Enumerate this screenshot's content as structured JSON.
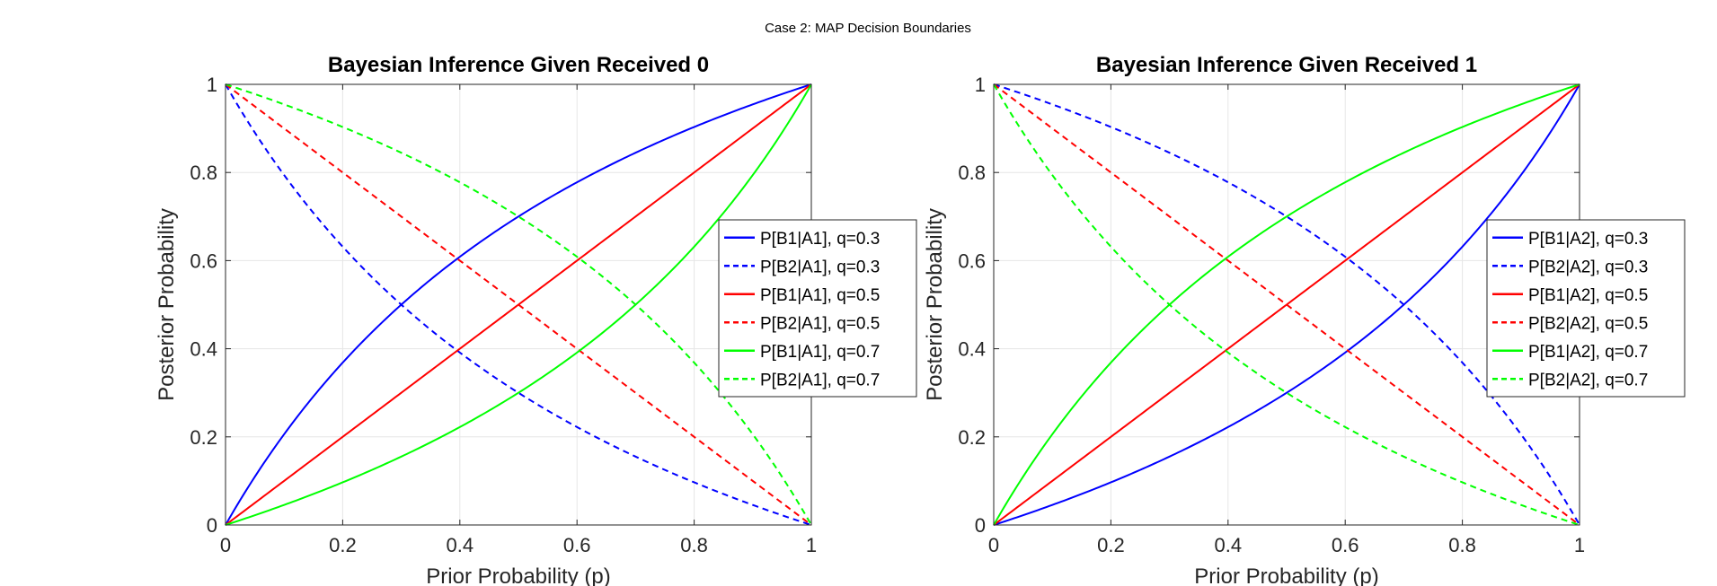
{
  "figure": {
    "suptitle": "Case 2: MAP Decision Boundaries"
  },
  "chart_data": [
    {
      "type": "line",
      "title": "Bayesian Inference Given Received 0",
      "xlabel": "Prior Probability (p)",
      "ylabel": "Posterior Probability",
      "xlim": [
        0,
        1
      ],
      "ylim": [
        0,
        1
      ],
      "xticks": [
        "0",
        "0.2",
        "0.4",
        "0.6",
        "0.8",
        "1"
      ],
      "yticks": [
        "0",
        "0.2",
        "0.4",
        "0.6",
        "0.8",
        "1"
      ],
      "grid": true,
      "legend_position": "right",
      "formula": "received0",
      "series": [
        {
          "name": "P[B1|A1], q=0.3",
          "q": 0.3,
          "kind": "B1",
          "color": "#0000ff",
          "dash": "solid"
        },
        {
          "name": "P[B2|A1], q=0.3",
          "q": 0.3,
          "kind": "B2",
          "color": "#0000ff",
          "dash": "dashed"
        },
        {
          "name": "P[B1|A1], q=0.5",
          "q": 0.5,
          "kind": "B1",
          "color": "#ff0000",
          "dash": "solid"
        },
        {
          "name": "P[B2|A1], q=0.5",
          "q": 0.5,
          "kind": "B2",
          "color": "#ff0000",
          "dash": "dashed"
        },
        {
          "name": "P[B1|A1], q=0.7",
          "q": 0.7,
          "kind": "B1",
          "color": "#00ff00",
          "dash": "solid"
        },
        {
          "name": "P[B2|A1], q=0.7",
          "q": 0.7,
          "kind": "B2",
          "color": "#00ff00",
          "dash": "dashed"
        }
      ]
    },
    {
      "type": "line",
      "title": "Bayesian Inference Given Received 1",
      "xlabel": "Prior Probability (p)",
      "ylabel": "Posterior Probability",
      "xlim": [
        0,
        1
      ],
      "ylim": [
        0,
        1
      ],
      "xticks": [
        "0",
        "0.2",
        "0.4",
        "0.6",
        "0.8",
        "1"
      ],
      "yticks": [
        "0",
        "0.2",
        "0.4",
        "0.6",
        "0.8",
        "1"
      ],
      "grid": true,
      "legend_position": "right",
      "formula": "received1",
      "series": [
        {
          "name": "P[B1|A2], q=0.3",
          "q": 0.3,
          "kind": "B1",
          "color": "#0000ff",
          "dash": "solid"
        },
        {
          "name": "P[B2|A2], q=0.3",
          "q": 0.3,
          "kind": "B2",
          "color": "#0000ff",
          "dash": "dashed"
        },
        {
          "name": "P[B1|A2], q=0.5",
          "q": 0.5,
          "kind": "B1",
          "color": "#ff0000",
          "dash": "solid"
        },
        {
          "name": "P[B2|A2], q=0.5",
          "q": 0.5,
          "kind": "B2",
          "color": "#ff0000",
          "dash": "dashed"
        },
        {
          "name": "P[B1|A2], q=0.7",
          "q": 0.7,
          "kind": "B1",
          "color": "#00ff00",
          "dash": "solid"
        },
        {
          "name": "P[B2|A2], q=0.7",
          "q": 0.7,
          "kind": "B2",
          "color": "#00ff00",
          "dash": "dashed"
        }
      ]
    }
  ]
}
